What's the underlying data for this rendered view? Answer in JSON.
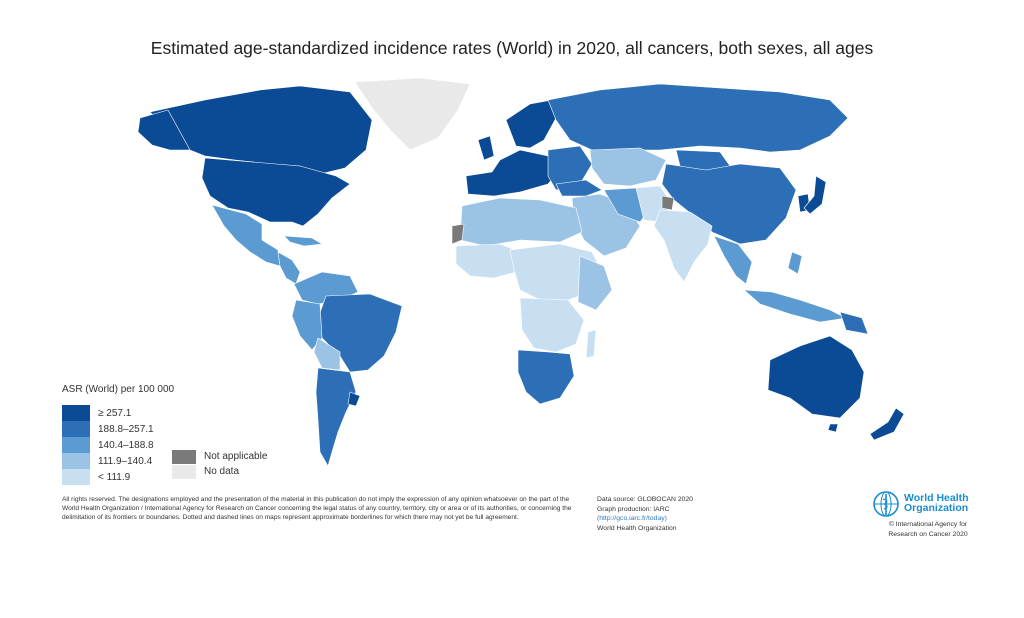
{
  "title": "Estimated age-standardized incidence rates (World) in 2020, all cancers, both sexes, all ages",
  "legend": {
    "title": "ASR (World) per 100 000",
    "classes": [
      {
        "label": "≥ 257.1",
        "color": "#0b4b95"
      },
      {
        "label": "188.8–257.1",
        "color": "#2c6fb6"
      },
      {
        "label": "140.4–188.8",
        "color": "#5c9bd2"
      },
      {
        "label": "111.9–140.4",
        "color": "#9ac3e6"
      },
      {
        "label": "< 111.9",
        "color": "#c8dff2"
      }
    ],
    "extra": [
      {
        "label": "Not applicable",
        "color": "#7a7a7a"
      },
      {
        "label": "No data",
        "color": "#e9e9e9"
      }
    ]
  },
  "disclaimer": "All rights reserved. The designations employed and the presentation of the material in this publication do not imply the expression of any opinion whatsoever on the part of the World Health Organization / International Agency for Research on Cancer concerning the legal status of any country, territory, city or area or of its authorities, or concerning the delimitation of its frontiers or boundaries. Dotted and dashed lines on maps represent approximate borderlines for which there may not yet be full agreement.",
  "source": {
    "line1": "Data source: GLOBOCAN 2020",
    "line2": "Graph production: IARC",
    "link": "(http://gco.iarc.fr/today)",
    "line4": "World Health Organization"
  },
  "who": {
    "name_line1": "World Health",
    "name_line2": "Organization",
    "copyright_line1": "© International Agency for",
    "copyright_line2": "Research on Cancer 2020"
  }
}
